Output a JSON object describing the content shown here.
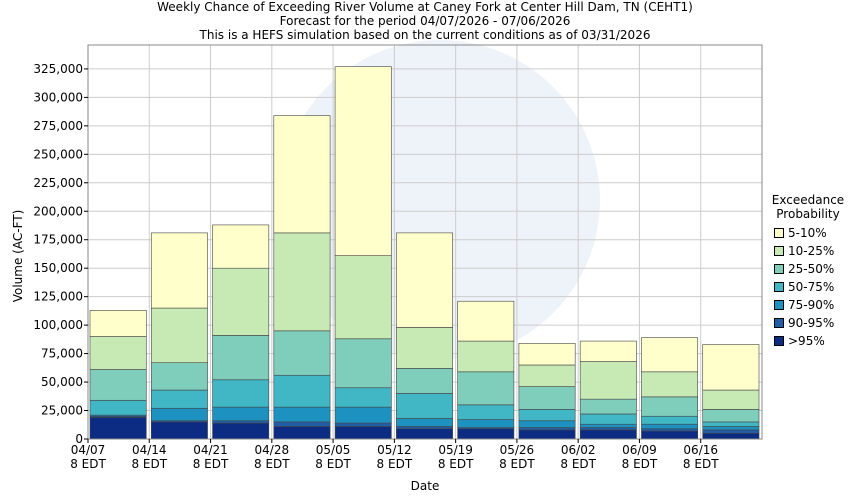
{
  "chart_data": {
    "type": "stacked-bar",
    "title": "Weekly Chance of Exceeding River Volume at Caney Fork  at Center Hill Dam, TN (CEHT1)",
    "subtitle": "Forecast for the period 04/07/2026 - 07/06/2026",
    "note": "This is a HEFS simulation based on the current conditions as of 03/31/2026",
    "x_label": "Date",
    "y_label": "Volume (AC-FT)",
    "legend_title": "Exceedance Probability",
    "categories": [
      "04/07",
      "04/14",
      "04/21",
      "04/28",
      "05/05",
      "05/12",
      "05/19",
      "05/26",
      "06/02",
      "06/09",
      "06/16"
    ],
    "category_sublabel": "8 EDT",
    "series": [
      {
        "name": ">95%",
        "color": "#0c2c84",
        "values": [
          19000,
          15000,
          14000,
          11000,
          11000,
          9000,
          9000,
          8000,
          8000,
          7000,
          5000
        ]
      },
      {
        "name": "90-95%",
        "color": "#225ea8",
        "values": [
          1000,
          1000,
          2000,
          4000,
          3000,
          2000,
          1000,
          2000,
          2000,
          2000,
          3000
        ]
      },
      {
        "name": "75-90%",
        "color": "#1d91c0",
        "values": [
          1000,
          11000,
          12000,
          13000,
          14000,
          7000,
          7000,
          6000,
          3000,
          4000,
          3000
        ]
      },
      {
        "name": "50-75%",
        "color": "#41b6c4",
        "values": [
          13000,
          16000,
          24000,
          28000,
          17000,
          22000,
          13000,
          10000,
          9000,
          7000,
          4000
        ]
      },
      {
        "name": "25-50%",
        "color": "#7fcdbb",
        "values": [
          27000,
          24000,
          39000,
          39000,
          43000,
          22000,
          29000,
          20000,
          13000,
          17000,
          11000
        ]
      },
      {
        "name": "10-25%",
        "color": "#c7e9b4",
        "values": [
          29000,
          48000,
          59000,
          86000,
          73000,
          36000,
          27000,
          19000,
          33000,
          22000,
          17000
        ]
      },
      {
        "name": "5-10%",
        "color": "#ffffcc",
        "values": [
          23000,
          66000,
          38000,
          103000,
          166000,
          83000,
          35000,
          19000,
          18000,
          30000,
          40000
        ]
      }
    ],
    "ylim": [
      0,
      346000
    ],
    "yticks": [
      0,
      {
        "value": 25000,
        "label": "25,000"
      },
      {
        "value": 50000,
        "label": "50,000"
      },
      {
        "value": 75000,
        "label": "75,000"
      },
      {
        "value": 100000,
        "label": "100,000"
      },
      {
        "value": 125000,
        "label": "125,000"
      },
      {
        "value": 150000,
        "label": "150,000"
      },
      {
        "value": 175000,
        "label": "175,000"
      },
      {
        "value": 200000,
        "label": "200,000"
      },
      {
        "value": 225000,
        "label": "225,000"
      },
      {
        "value": 250000,
        "label": "250,000"
      },
      {
        "value": 275000,
        "label": "275,000"
      },
      {
        "value": 300000,
        "label": "300,000"
      },
      {
        "value": 325000,
        "label": "325,000"
      }
    ],
    "grid": true
  }
}
